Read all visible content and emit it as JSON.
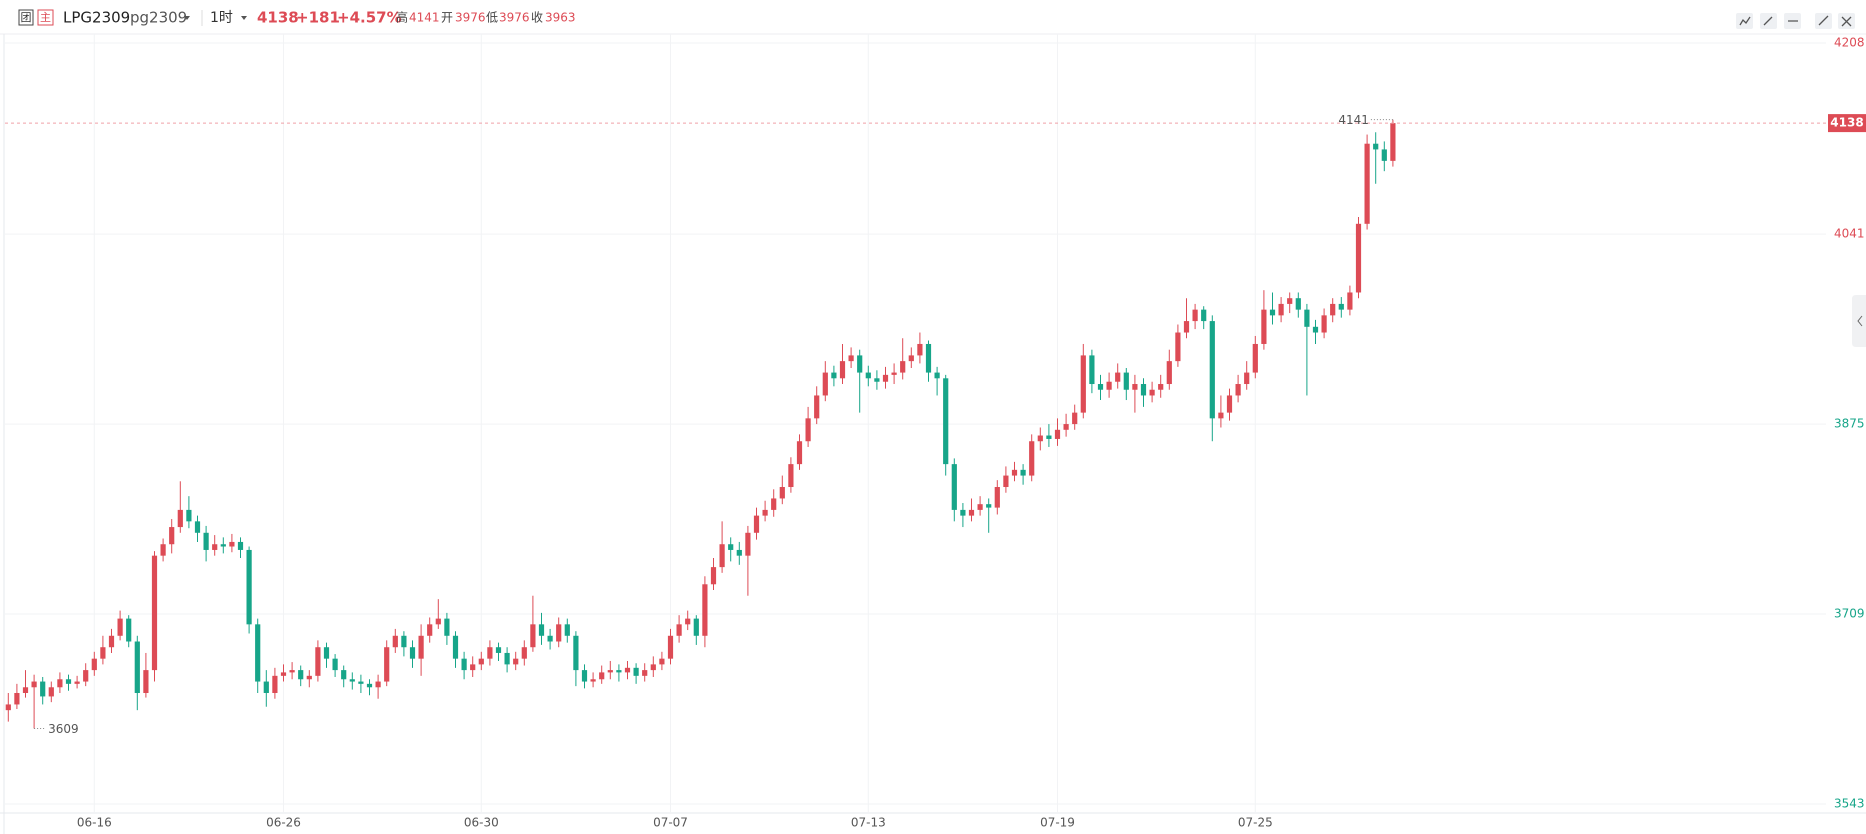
{
  "header": {
    "badge1": "团",
    "badge2": "主",
    "symbol": "LPG2309",
    "code": "pg2309",
    "period": "1时",
    "last": 4138,
    "change": "+181",
    "change_pct": "+4.57%",
    "high_label": "高",
    "high": 4141,
    "open_label": "开",
    "open": 3976,
    "low_label": "低",
    "low": 3976,
    "close_label": "收",
    "close": 3963
  },
  "chart_data": {
    "type": "candlestick",
    "up_color": "#dd4b55",
    "down_color": "#17a589",
    "ylim": [
      3543,
      4208
    ],
    "yticks": [
      3543,
      3709,
      3875,
      4041,
      4208
    ],
    "ytick_colors": [
      "#17a589",
      "#17a589",
      "#17a589",
      "#dd4b55",
      "#dd4b55"
    ],
    "grid": true,
    "categories": [
      null,
      null,
      null,
      null,
      null,
      null,
      null,
      null,
      null,
      null,
      "06-16",
      null,
      null,
      null,
      null,
      null,
      null,
      null,
      null,
      null,
      null,
      null,
      null,
      null,
      null,
      null,
      null,
      null,
      null,
      null,
      null,
      null,
      "06-26",
      null,
      null,
      null,
      null,
      null,
      null,
      null,
      null,
      null,
      null,
      null,
      null,
      null,
      null,
      null,
      null,
      null,
      null,
      null,
      null,
      null,
      null,
      "06-30",
      null,
      null,
      null,
      null,
      null,
      null,
      null,
      null,
      null,
      null,
      null,
      null,
      null,
      null,
      null,
      null,
      null,
      null,
      null,
      null,
      null,
      "07-07",
      null,
      null,
      null,
      null,
      null,
      null,
      null,
      null,
      null,
      null,
      null,
      null,
      null,
      null,
      null,
      null,
      null,
      null,
      null,
      null,
      null,
      null,
      "07-13",
      null,
      null,
      null,
      null,
      null,
      null,
      null,
      null,
      null,
      null,
      null,
      null,
      null,
      null,
      null,
      null,
      null,
      null,
      null,
      null,
      null,
      "07-19",
      null,
      null,
      null,
      null,
      null,
      null,
      null,
      null,
      null,
      null,
      null,
      null,
      null,
      null,
      null,
      null,
      null,
      null,
      null,
      null,
      null,
      null,
      "07-25",
      null,
      null,
      null,
      null,
      null,
      null,
      null,
      null,
      null,
      null,
      null,
      null,
      null,
      null,
      null,
      null
    ],
    "candles": [
      [
        3625,
        3640,
        3615,
        3630
      ],
      [
        3630,
        3648,
        3626,
        3640
      ],
      [
        3640,
        3660,
        3636,
        3645
      ],
      [
        3645,
        3656,
        3609,
        3650
      ],
      [
        3650,
        3654,
        3630,
        3637
      ],
      [
        3637,
        3650,
        3632,
        3645
      ],
      [
        3645,
        3658,
        3640,
        3652
      ],
      [
        3652,
        3656,
        3642,
        3648
      ],
      [
        3648,
        3655,
        3644,
        3650
      ],
      [
        3650,
        3666,
        3646,
        3660
      ],
      [
        3660,
        3676,
        3655,
        3670
      ],
      [
        3670,
        3690,
        3665,
        3680
      ],
      [
        3680,
        3696,
        3675,
        3690
      ],
      [
        3690,
        3712,
        3686,
        3705
      ],
      [
        3705,
        3708,
        3680,
        3685
      ],
      [
        3685,
        3690,
        3625,
        3640
      ],
      [
        3640,
        3675,
        3636,
        3660
      ],
      [
        3660,
        3764,
        3650,
        3760
      ],
      [
        3760,
        3775,
        3755,
        3770
      ],
      [
        3770,
        3792,
        3762,
        3785
      ],
      [
        3785,
        3825,
        3780,
        3800
      ],
      [
        3800,
        3812,
        3784,
        3790
      ],
      [
        3790,
        3795,
        3772,
        3780
      ],
      [
        3780,
        3786,
        3755,
        3765
      ],
      [
        3765,
        3778,
        3760,
        3770
      ],
      [
        3770,
        3776,
        3762,
        3768
      ],
      [
        3768,
        3779,
        3763,
        3772
      ],
      [
        3772,
        3776,
        3758,
        3765
      ],
      [
        3765,
        3768,
        3692,
        3700
      ],
      [
        3700,
        3705,
        3640,
        3650
      ],
      [
        3650,
        3660,
        3628,
        3640
      ],
      [
        3640,
        3662,
        3635,
        3655
      ],
      [
        3655,
        3665,
        3650,
        3658
      ],
      [
        3658,
        3667,
        3652,
        3660
      ],
      [
        3660,
        3664,
        3646,
        3652
      ],
      [
        3652,
        3660,
        3645,
        3655
      ],
      [
        3655,
        3686,
        3650,
        3680
      ],
      [
        3680,
        3684,
        3662,
        3670
      ],
      [
        3670,
        3674,
        3654,
        3660
      ],
      [
        3660,
        3664,
        3645,
        3652
      ],
      [
        3652,
        3658,
        3643,
        3650
      ],
      [
        3650,
        3656,
        3640,
        3648
      ],
      [
        3648,
        3652,
        3638,
        3645
      ],
      [
        3645,
        3656,
        3635,
        3650
      ],
      [
        3650,
        3686,
        3646,
        3680
      ],
      [
        3680,
        3696,
        3675,
        3690
      ],
      [
        3690,
        3694,
        3672,
        3680
      ],
      [
        3680,
        3686,
        3662,
        3670
      ],
      [
        3670,
        3700,
        3655,
        3690
      ],
      [
        3690,
        3706,
        3684,
        3700
      ],
      [
        3700,
        3722,
        3696,
        3705
      ],
      [
        3705,
        3710,
        3682,
        3690
      ],
      [
        3690,
        3694,
        3662,
        3670
      ],
      [
        3670,
        3676,
        3652,
        3660
      ],
      [
        3660,
        3672,
        3654,
        3665
      ],
      [
        3665,
        3676,
        3660,
        3670
      ],
      [
        3670,
        3686,
        3664,
        3680
      ],
      [
        3680,
        3684,
        3668,
        3675
      ],
      [
        3675,
        3680,
        3658,
        3665
      ],
      [
        3665,
        3676,
        3660,
        3670
      ],
      [
        3670,
        3686,
        3664,
        3680
      ],
      [
        3680,
        3725,
        3676,
        3700
      ],
      [
        3700,
        3710,
        3682,
        3690
      ],
      [
        3690,
        3696,
        3678,
        3685
      ],
      [
        3685,
        3706,
        3680,
        3700
      ],
      [
        3700,
        3705,
        3684,
        3690
      ],
      [
        3690,
        3694,
        3646,
        3660
      ],
      [
        3660,
        3665,
        3644,
        3650
      ],
      [
        3650,
        3658,
        3645,
        3652
      ],
      [
        3652,
        3664,
        3648,
        3658
      ],
      [
        3658,
        3668,
        3652,
        3660
      ],
      [
        3660,
        3665,
        3650,
        3658
      ],
      [
        3658,
        3668,
        3652,
        3662
      ],
      [
        3662,
        3666,
        3648,
        3655
      ],
      [
        3655,
        3666,
        3650,
        3660
      ],
      [
        3660,
        3672,
        3654,
        3665
      ],
      [
        3665,
        3676,
        3660,
        3670
      ],
      [
        3670,
        3696,
        3665,
        3690
      ],
      [
        3690,
        3708,
        3684,
        3700
      ],
      [
        3700,
        3712,
        3695,
        3705
      ],
      [
        3705,
        3708,
        3682,
        3690
      ],
      [
        3690,
        3742,
        3680,
        3735
      ],
      [
        3735,
        3758,
        3730,
        3750
      ],
      [
        3750,
        3790,
        3745,
        3770
      ],
      [
        3770,
        3776,
        3755,
        3765
      ],
      [
        3765,
        3772,
        3752,
        3760
      ],
      [
        3760,
        3786,
        3725,
        3780
      ],
      [
        3780,
        3802,
        3774,
        3795
      ],
      [
        3795,
        3808,
        3790,
        3800
      ],
      [
        3800,
        3818,
        3794,
        3810
      ],
      [
        3810,
        3830,
        3805,
        3820
      ],
      [
        3820,
        3846,
        3815,
        3840
      ],
      [
        3840,
        3866,
        3835,
        3860
      ],
      [
        3860,
        3890,
        3855,
        3880
      ],
      [
        3880,
        3908,
        3875,
        3900
      ],
      [
        3900,
        3930,
        3895,
        3920
      ],
      [
        3920,
        3926,
        3908,
        3915
      ],
      [
        3915,
        3945,
        3910,
        3930
      ],
      [
        3930,
        3942,
        3924,
        3935
      ],
      [
        3935,
        3940,
        3885,
        3920
      ],
      [
        3920,
        3926,
        3908,
        3915
      ],
      [
        3915,
        3922,
        3905,
        3912
      ],
      [
        3912,
        3925,
        3906,
        3918
      ],
      [
        3918,
        3928,
        3910,
        3920
      ],
      [
        3920,
        3950,
        3914,
        3930
      ],
      [
        3930,
        3942,
        3924,
        3935
      ],
      [
        3935,
        3955,
        3928,
        3945
      ],
      [
        3945,
        3948,
        3912,
        3920
      ],
      [
        3920,
        3925,
        3900,
        3915
      ],
      [
        3915,
        3918,
        3830,
        3840
      ],
      [
        3840,
        3845,
        3790,
        3800
      ],
      [
        3800,
        3806,
        3785,
        3795
      ],
      [
        3795,
        3810,
        3790,
        3800
      ],
      [
        3800,
        3812,
        3795,
        3805
      ],
      [
        3805,
        3810,
        3780,
        3802
      ],
      [
        3802,
        3826,
        3796,
        3820
      ],
      [
        3820,
        3838,
        3815,
        3830
      ],
      [
        3830,
        3842,
        3825,
        3835
      ],
      [
        3835,
        3840,
        3822,
        3830
      ],
      [
        3830,
        3866,
        3825,
        3860
      ],
      [
        3860,
        3872,
        3852,
        3865
      ],
      [
        3865,
        3875,
        3855,
        3862
      ],
      [
        3862,
        3880,
        3856,
        3870
      ],
      [
        3870,
        3884,
        3864,
        3875
      ],
      [
        3875,
        3892,
        3870,
        3885
      ],
      [
        3885,
        3945,
        3880,
        3935
      ],
      [
        3935,
        3940,
        3902,
        3910
      ],
      [
        3910,
        3918,
        3896,
        3905
      ],
      [
        3905,
        3920,
        3898,
        3912
      ],
      [
        3912,
        3928,
        3906,
        3920
      ],
      [
        3920,
        3924,
        3896,
        3905
      ],
      [
        3905,
        3918,
        3885,
        3910
      ],
      [
        3910,
        3915,
        3890,
        3900
      ],
      [
        3900,
        3912,
        3894,
        3905
      ],
      [
        3905,
        3918,
        3898,
        3910
      ],
      [
        3910,
        3940,
        3905,
        3930
      ],
      [
        3930,
        3962,
        3925,
        3955
      ],
      [
        3955,
        3985,
        3950,
        3965
      ],
      [
        3965,
        3980,
        3958,
        3975
      ],
      [
        3975,
        3978,
        3958,
        3965
      ],
      [
        3965,
        3970,
        3860,
        3880
      ],
      [
        3880,
        3900,
        3872,
        3885
      ],
      [
        3885,
        3906,
        3878,
        3900
      ],
      [
        3900,
        3918,
        3894,
        3910
      ],
      [
        3910,
        3930,
        3905,
        3920
      ],
      [
        3920,
        3952,
        3915,
        3945
      ],
      [
        3945,
        3992,
        3940,
        3975
      ],
      [
        3975,
        3990,
        3962,
        3970
      ],
      [
        3970,
        3986,
        3964,
        3980
      ],
      [
        3980,
        3990,
        3972,
        3985
      ],
      [
        3985,
        3990,
        3968,
        3975
      ],
      [
        3975,
        3980,
        3900,
        3960
      ],
      [
        3960,
        3966,
        3945,
        3955
      ],
      [
        3955,
        3976,
        3950,
        3970
      ],
      [
        3970,
        3985,
        3964,
        3980
      ],
      [
        3980,
        3986,
        3968,
        3975
      ],
      [
        3975,
        3996,
        3970,
        3990
      ],
      [
        3990,
        4056,
        3985,
        4050
      ],
      [
        4050,
        4128,
        4045,
        4120
      ],
      [
        4120,
        4130,
        4085,
        4115
      ],
      [
        4115,
        4122,
        4096,
        4105
      ],
      [
        4105,
        4141,
        4100,
        4138
      ]
    ]
  }
}
